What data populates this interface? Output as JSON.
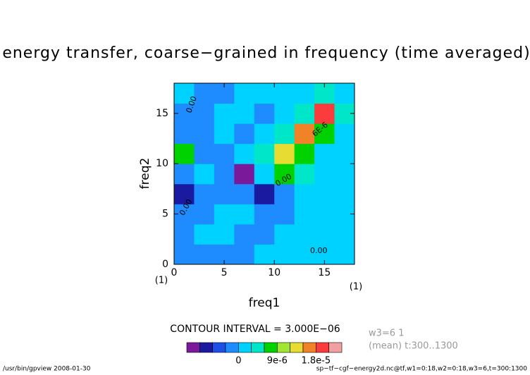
{
  "chart_data": {
    "type": "contour",
    "title": "energy transfer, coarse−grained in frequency (time averaged)",
    "xlabel": "freq1",
    "ylabel": "freq2",
    "x_unit": "(1)",
    "y_unit": "(1)",
    "x": [
      1,
      3,
      5,
      7,
      9,
      11,
      13,
      15,
      17
    ],
    "y": [
      1,
      3,
      5,
      7,
      9,
      11,
      13,
      15,
      17
    ],
    "z": [
      [
        -1.5e-06,
        -1.5e-06,
        -1.5e-06,
        -1.5e-06,
        1.5e-06,
        1.5e-06,
        1.5e-06,
        1.5e-06,
        1.5e-06
      ],
      [
        -1.5e-06,
        1.5e-06,
        1.5e-06,
        -1.5e-06,
        -1.5e-06,
        1.5e-06,
        1.5e-06,
        1.5e-06,
        1.5e-06
      ],
      [
        -1.5e-06,
        -1.5e-06,
        1.5e-06,
        1.5e-06,
        -1.5e-06,
        -1.5e-06,
        1.5e-06,
        1.5e-06,
        1.5e-06
      ],
      [
        -7.5e-06,
        -1.5e-06,
        -1.5e-06,
        -1.5e-06,
        -7.5e-06,
        -1.5e-06,
        1.5e-06,
        1.5e-06,
        1.5e-06
      ],
      [
        -1.5e-06,
        1.5e-06,
        -1.5e-06,
        -1.05e-05,
        1.5e-06,
        7.5e-06,
        4.5e-06,
        1.5e-06,
        1.5e-06
      ],
      [
        7.5e-06,
        -1.5e-06,
        -1.5e-06,
        1.5e-06,
        4.5e-06,
        1.35e-05,
        7.5e-06,
        1.5e-06,
        1.5e-06
      ],
      [
        -1.5e-06,
        -1.5e-06,
        1.5e-06,
        -1.5e-06,
        1.5e-06,
        4.5e-06,
        1.65e-05,
        7.5e-06,
        1.5e-06
      ],
      [
        -1.5e-06,
        -1.5e-06,
        1.5e-06,
        1.5e-06,
        -1.5e-06,
        1.5e-06,
        4.5e-06,
        1.95e-05,
        4.5e-06
      ],
      [
        1.5e-06,
        -1.5e-06,
        -1.5e-06,
        1.5e-06,
        1.5e-06,
        1.5e-06,
        1.5e-06,
        4.5e-06,
        1.5e-06
      ]
    ],
    "xlim": [
      0,
      18
    ],
    "ylim": [
      0,
      18
    ],
    "xticks": [
      0,
      5,
      10,
      15
    ],
    "yticks": [
      0,
      5,
      10,
      15
    ],
    "levels": [
      -9e-06,
      -6e-06,
      -3e-06,
      0,
      3e-06,
      6e-06,
      9e-06,
      1.2e-05,
      1.5e-05,
      1.8e-05,
      2.1e-05
    ],
    "colors": [
      "#7a1a9a",
      "#1a1aa0",
      "#1e50e6",
      "#1e8cff",
      "#00d2ff",
      "#00e6c8",
      "#00d200",
      "#a0e632",
      "#e6dc32",
      "#f08228",
      "#fa3c3c",
      "#f0a0a0"
    ],
    "contour_interval": "CONTOUR INTERVAL = 3.000E−06",
    "colorbar_ticks": [
      0,
      {
        "value": 9e-06,
        "label": "9e-6"
      },
      {
        "value": 1.8e-05,
        "label": "1.8e-5"
      }
    ],
    "contour_labels": [
      "0.00",
      "0.00",
      "0.00",
      "0.00",
      "6E-6"
    ]
  },
  "side_notes": [
    "w3=6 1",
    "(mean) t:300..1300"
  ],
  "footer": {
    "left": "/usr/bin/gpview  2008-01-30",
    "right": "sp−tf−cgf−energy2d.nc@tf,w1=0:18,w2=0:18,w3=6,t=300:1300"
  }
}
